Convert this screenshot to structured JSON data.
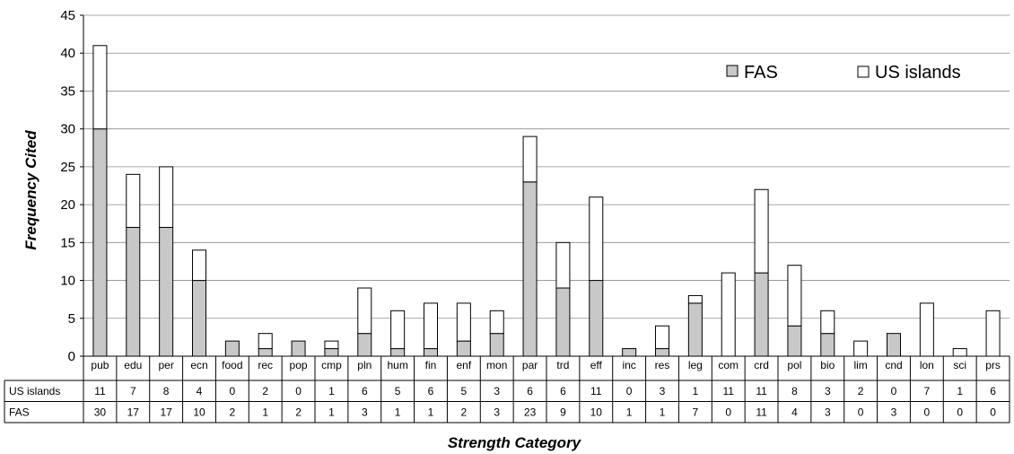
{
  "chart_data": {
    "type": "bar",
    "stacked": true,
    "categories": [
      "pub",
      "edu",
      "per",
      "ecn",
      "food",
      "rec",
      "pop",
      "cmp",
      "pln",
      "hum",
      "fin",
      "enf",
      "mon",
      "par",
      "trd",
      "eff",
      "inc",
      "res",
      "leg",
      "com",
      "crd",
      "pol",
      "bio",
      "lim",
      "cnd",
      "lon",
      "sci",
      "prs"
    ],
    "series": [
      {
        "name": "FAS",
        "color": "#c8c8c8",
        "values": [
          30,
          17,
          17,
          10,
          2,
          1,
          2,
          1,
          3,
          1,
          1,
          2,
          3,
          23,
          9,
          10,
          1,
          1,
          7,
          0,
          11,
          4,
          3,
          0,
          3,
          0,
          0,
          0
        ]
      },
      {
        "name": "US islands",
        "color": "#ffffff",
        "values": [
          11,
          7,
          8,
          4,
          0,
          2,
          0,
          1,
          6,
          5,
          6,
          5,
          3,
          6,
          6,
          11,
          0,
          3,
          1,
          11,
          11,
          8,
          3,
          2,
          0,
          7,
          1,
          6
        ]
      }
    ],
    "ylim": [
      0,
      45
    ],
    "yticks": [
      0,
      5,
      10,
      15,
      20,
      25,
      30,
      35,
      40,
      45
    ],
    "xlabel": "Strength Category",
    "ylabel": "Frequency Cited",
    "legend": {
      "position": "top-right",
      "fas_label": "FAS",
      "us_label": "US islands"
    },
    "grid": true,
    "data_table": {
      "rows": [
        {
          "label": "US islands",
          "series": "US islands"
        },
        {
          "label": "FAS",
          "series": "FAS"
        }
      ]
    }
  }
}
